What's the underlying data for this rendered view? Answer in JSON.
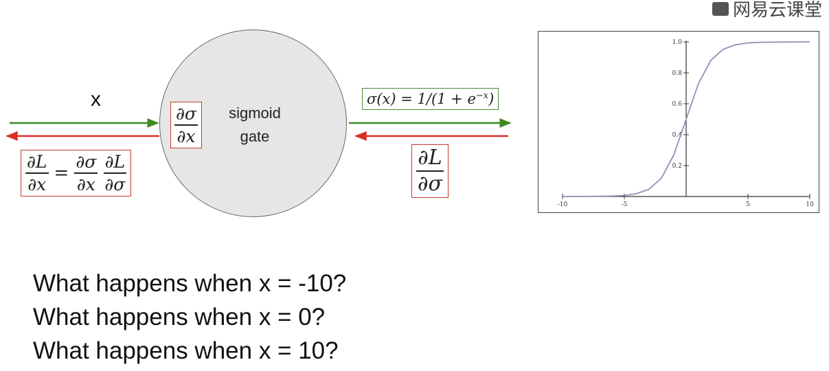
{
  "watermark": {
    "text": "网易云课堂"
  },
  "diagram": {
    "input_label": "x",
    "gate_label": "sigmoid\ngate",
    "local_grad": {
      "num": "∂σ",
      "den": "∂x"
    },
    "chain_rule": {
      "lhs_num": "∂L",
      "lhs_den": "∂x",
      "eq": "=",
      "a_num": "∂σ",
      "a_den": "∂x",
      "b_num": "∂L",
      "b_den": "∂σ"
    },
    "output_formula": "σ(x) = 1/(1 + e",
    "output_formula_exp": "−x",
    "output_formula_tail": ")",
    "upstream_grad": {
      "num": "∂L",
      "den": "∂σ"
    },
    "colors": {
      "forward": "#3d8a1e",
      "backward": "#d93025",
      "gate_fill": "#e6e6e6"
    }
  },
  "questions": [
    "What happens when x = -10?",
    "What happens when x = 0?",
    "What happens when x = 10?"
  ],
  "chart_data": {
    "type": "line",
    "function": "sigmoid",
    "series": [
      {
        "color": "#8f8fb5",
        "x": [
          -10,
          -8,
          -6,
          -5,
          -4,
          -3,
          -2,
          -1,
          0,
          1,
          2,
          3,
          4,
          5,
          6,
          8,
          10
        ],
        "y": [
          5e-05,
          0.0003,
          0.0025,
          0.0067,
          0.018,
          0.047,
          0.119,
          0.269,
          0.5,
          0.731,
          0.881,
          0.953,
          0.982,
          0.9933,
          0.9975,
          0.9997,
          0.99995
        ]
      }
    ],
    "xlim": [
      -10,
      10
    ],
    "ylim": [
      0,
      1.0
    ],
    "x_ticks": [
      -10,
      -5,
      5,
      10
    ],
    "x_tick_labels": [
      "-10",
      "-5",
      "5",
      "10"
    ],
    "y_ticks": [
      0.2,
      0.4,
      0.6,
      0.8,
      1.0
    ],
    "y_tick_labels": [
      "0.2",
      "0.4",
      "0.6",
      "0.8",
      "1.0"
    ],
    "grid": false,
    "axes_at_origin": true
  }
}
